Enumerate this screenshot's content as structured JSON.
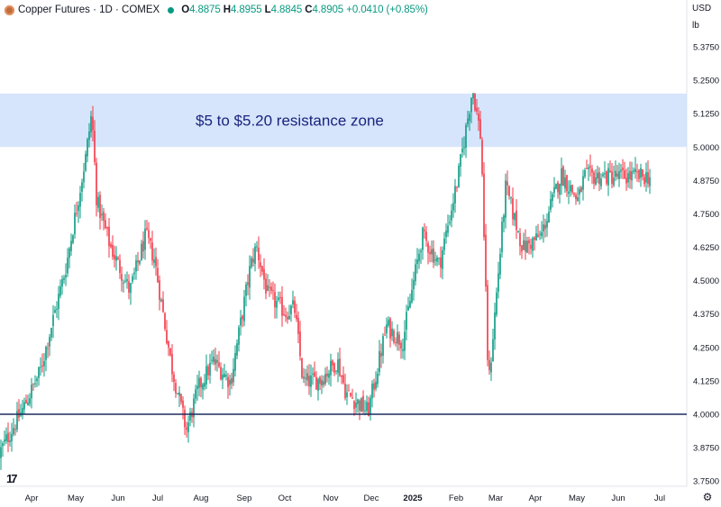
{
  "header": {
    "symbol_line": "Copper Futures · 1D · COMEX",
    "open_label": "O",
    "open": "4.8875",
    "high_label": "H",
    "high": "4.8955",
    "low_label": "L",
    "low": "4.8845",
    "close_label": "C",
    "close": "4.8905",
    "change": "+0.0410 (+0.85%)",
    "currency": "USD",
    "unit": "lb",
    "logo_text": "17"
  },
  "colors": {
    "up": "#089981",
    "down": "#f23645",
    "zone_fill": "#cfe0fc",
    "support_line": "#1e2b5e",
    "annotation_text": "#1a237e"
  },
  "chart_data": {
    "type": "candlestick",
    "title": "Copper Futures",
    "xlabel": "",
    "ylabel": "",
    "ylim": [
      3.7,
      5.4
    ],
    "y_ticks": [
      "5.3750",
      "5.2500",
      "5.1250",
      "5.0000",
      "4.8750",
      "4.7500",
      "4.6250",
      "4.5000",
      "4.3750",
      "4.2500",
      "4.1250",
      "4.0000",
      "3.8750",
      "3.7500"
    ],
    "x_ticks": [
      "Apr",
      "May",
      "Jun",
      "Jul",
      "Aug",
      "Sep",
      "Oct",
      "Nov",
      "Dec",
      "2025",
      "Feb",
      "Mar",
      "Apr",
      "May",
      "Jun",
      "Jul"
    ],
    "series": [
      {
        "points": [
          [
            "2024-03-04",
            3.84
          ],
          [
            "2024-03-25",
            4.02
          ],
          [
            "2024-04-08",
            4.16
          ],
          [
            "2024-04-29",
            4.55
          ],
          [
            "2024-05-15",
            4.96
          ],
          [
            "2024-05-20",
            5.13
          ],
          [
            "2024-05-24",
            4.8
          ],
          [
            "2024-06-04",
            4.63
          ],
          [
            "2024-06-20",
            4.46
          ],
          [
            "2024-07-03",
            4.67
          ],
          [
            "2024-07-10",
            4.58
          ],
          [
            "2024-07-24",
            4.18
          ],
          [
            "2024-08-05",
            3.94
          ],
          [
            "2024-08-15",
            4.1
          ],
          [
            "2024-08-27",
            4.2
          ],
          [
            "2024-09-10",
            4.12
          ],
          [
            "2024-09-26",
            4.55
          ],
          [
            "2024-10-01",
            4.63
          ],
          [
            "2024-10-10",
            4.45
          ],
          [
            "2024-10-25",
            4.38
          ],
          [
            "2024-11-01",
            4.4
          ],
          [
            "2024-11-08",
            4.12
          ],
          [
            "2024-11-22",
            4.13
          ],
          [
            "2024-12-06",
            4.2
          ],
          [
            "2024-12-13",
            4.08
          ],
          [
            "2024-12-31",
            4.01
          ],
          [
            "2025-01-15",
            4.33
          ],
          [
            "2025-01-28",
            4.27
          ],
          [
            "2025-02-13",
            4.67
          ],
          [
            "2025-02-27",
            4.56
          ],
          [
            "2025-03-14",
            4.88
          ],
          [
            "2025-03-26",
            5.22
          ],
          [
            "2025-04-02",
            5.03
          ],
          [
            "2025-04-08",
            4.1
          ],
          [
            "2025-04-22",
            4.85
          ],
          [
            "2025-05-06",
            4.62
          ],
          [
            "2025-05-21",
            4.67
          ],
          [
            "2025-06-06",
            4.9
          ],
          [
            "2025-06-20",
            4.8
          ],
          [
            "2025-06-25",
            4.89
          ]
        ]
      }
    ],
    "annotations": [
      {
        "type": "zone",
        "y0": 5.0,
        "y1": 5.2,
        "label": "$5 to $5.20 resistance zone"
      },
      {
        "type": "hline",
        "y": 4.0
      }
    ]
  }
}
